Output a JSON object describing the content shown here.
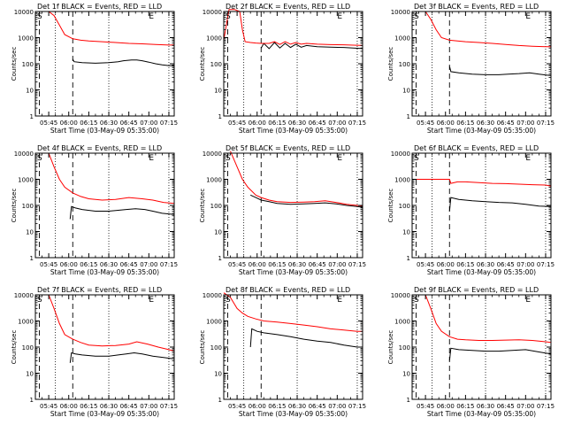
{
  "common": {
    "ylabel": "Counts/sec",
    "xlabel": "Start Time (03-May-09 05:35:00)",
    "xlabel_alt": "Start Time (03–May–09 05:35:00)",
    "xticks": [
      "05:45",
      "06:00",
      "06:15",
      "06:30",
      "06:45",
      "07:00",
      "07:15"
    ],
    "yticks": [
      "1",
      "10",
      "100",
      "1000",
      "10000"
    ],
    "marker_S": "S",
    "marker_E": "E",
    "colors": {
      "events": "#000000",
      "lld": "#ff0000"
    },
    "scale": "log"
  },
  "chart_data": [
    {
      "type": "line",
      "title": "Det 1f BLACK = Events, RED = LLD",
      "ylim": [
        1,
        10000
      ],
      "xlim_minutes": [
        0,
        104
      ],
      "series": [
        {
          "name": "Events",
          "x": [
            28,
            29,
            35,
            45,
            55,
            62,
            66,
            72,
            76,
            80,
            85,
            90,
            95,
            100,
            104
          ],
          "y": [
            150,
            120,
            110,
            105,
            110,
            120,
            130,
            140,
            140,
            130,
            115,
            100,
            90,
            85,
            85
          ]
        },
        {
          "name": "LLD",
          "x": [
            10,
            14,
            18,
            22,
            28,
            34,
            40,
            50,
            60,
            70,
            80,
            90,
            100,
            104
          ],
          "y": [
            10000,
            7000,
            3000,
            1300,
            900,
            800,
            750,
            700,
            650,
            600,
            580,
            550,
            520,
            520
          ]
        }
      ]
    },
    {
      "type": "line",
      "title": "Det 2f BLACK = Events, RED = LLD",
      "ylim": [
        1,
        10000
      ],
      "xlim_minutes": [
        0,
        104
      ],
      "series": [
        {
          "name": "Events",
          "x": [
            28,
            30,
            34,
            38,
            42,
            46,
            50,
            54,
            58,
            62,
            70,
            80,
            90,
            104
          ],
          "y": [
            400,
            600,
            380,
            650,
            400,
            600,
            420,
            560,
            430,
            500,
            450,
            430,
            420,
            380
          ]
        },
        {
          "name": "LLD",
          "x": [
            0,
            4,
            8,
            12,
            14,
            16,
            20,
            24,
            28,
            34,
            38,
            42,
            46,
            50,
            54,
            58,
            62,
            70,
            80,
            90,
            104
          ],
          "y": [
            800,
            12000,
            12000,
            10000,
            2000,
            700,
            650,
            620,
            600,
            600,
            700,
            550,
            700,
            560,
            650,
            560,
            600,
            560,
            540,
            530,
            500
          ]
        }
      ]
    },
    {
      "type": "line",
      "title": "Det 3f BLACK = Events, RED = LLD",
      "ylim": [
        1,
        10000
      ],
      "xlim_minutes": [
        0,
        104
      ],
      "series": [
        {
          "name": "Events",
          "x": [
            28,
            29,
            35,
            45,
            55,
            65,
            72,
            80,
            88,
            95,
            104
          ],
          "y": [
            80,
            50,
            45,
            40,
            38,
            38,
            40,
            42,
            45,
            40,
            35
          ]
        },
        {
          "name": "LLD",
          "x": [
            10,
            14,
            18,
            22,
            28,
            34,
            40,
            50,
            60,
            70,
            80,
            90,
            100,
            104
          ],
          "y": [
            10000,
            5000,
            2000,
            1000,
            800,
            750,
            700,
            650,
            600,
            550,
            500,
            470,
            450,
            450
          ]
        }
      ]
    },
    {
      "type": "line",
      "title": "Det 4f BLACK = Events, RED = LLD",
      "ylim": [
        1,
        10000
      ],
      "xlim_minutes": [
        0,
        104
      ],
      "series": [
        {
          "name": "Events",
          "x": [
            26,
            27,
            30,
            35,
            45,
            55,
            62,
            68,
            75,
            82,
            88,
            95,
            104
          ],
          "y": [
            30,
            90,
            80,
            70,
            60,
            60,
            65,
            70,
            75,
            70,
            60,
            50,
            45
          ]
        },
        {
          "name": "LLD",
          "x": [
            10,
            14,
            18,
            22,
            28,
            34,
            40,
            50,
            60,
            70,
            80,
            88,
            96,
            104
          ],
          "y": [
            10000,
            3000,
            1000,
            500,
            300,
            220,
            180,
            160,
            170,
            200,
            180,
            160,
            130,
            120
          ]
        }
      ]
    },
    {
      "type": "line",
      "title": "Det 5f BLACK = Events, RED = LLD",
      "ylim": [
        1,
        10000
      ],
      "xlim_minutes": [
        0,
        104
      ],
      "series": [
        {
          "name": "Events",
          "x": [
            20,
            24,
            28,
            34,
            40,
            50,
            60,
            68,
            76,
            84,
            92,
            100,
            104
          ],
          "y": [
            250,
            200,
            160,
            140,
            120,
            110,
            115,
            120,
            125,
            115,
            100,
            90,
            85
          ]
        },
        {
          "name": "LLD",
          "x": [
            5,
            10,
            14,
            18,
            24,
            28,
            34,
            40,
            50,
            60,
            68,
            76,
            84,
            92,
            100,
            104
          ],
          "y": [
            12000,
            3000,
            1000,
            500,
            250,
            200,
            160,
            140,
            130,
            135,
            140,
            150,
            130,
            110,
            100,
            95
          ]
        }
      ]
    },
    {
      "type": "line",
      "title": "Det 6f BLACK = Events, RED = LLD",
      "ylim": [
        1,
        10000
      ],
      "xlim_minutes": [
        0,
        104
      ],
      "series": [
        {
          "name": "Events",
          "x": [
            28,
            29,
            35,
            45,
            55,
            65,
            75,
            85,
            95,
            104
          ],
          "y": [
            60,
            200,
            170,
            150,
            140,
            130,
            125,
            110,
            95,
            90
          ]
        },
        {
          "name": "LLD",
          "x": [
            0,
            10,
            20,
            28,
            29,
            34,
            40,
            50,
            60,
            70,
            80,
            90,
            100,
            104
          ],
          "y": [
            1000,
            1000,
            1000,
            1000,
            700,
            800,
            800,
            750,
            700,
            680,
            650,
            620,
            600,
            550
          ]
        }
      ]
    },
    {
      "type": "line",
      "title": "Det 7f BLACK = Events, RED = LLD",
      "ylim": [
        1,
        10000
      ],
      "xlim_minutes": [
        0,
        104
      ],
      "series": [
        {
          "name": "Events",
          "x": [
            26,
            27,
            30,
            35,
            45,
            55,
            62,
            68,
            74,
            80,
            88,
            96,
            104
          ],
          "y": [
            25,
            60,
            55,
            50,
            45,
            45,
            50,
            55,
            60,
            55,
            45,
            40,
            35
          ]
        },
        {
          "name": "LLD",
          "x": [
            10,
            14,
            18,
            22,
            28,
            34,
            40,
            50,
            60,
            70,
            76,
            84,
            92,
            100,
            104
          ],
          "y": [
            10000,
            3000,
            800,
            300,
            200,
            150,
            120,
            110,
            115,
            130,
            160,
            130,
            100,
            80,
            70
          ]
        }
      ]
    },
    {
      "type": "line",
      "title": "Det 8f BLACK = Events, RED = LLD",
      "ylim": [
        1,
        10000
      ],
      "xlim_minutes": [
        0,
        104
      ],
      "series": [
        {
          "name": "Events",
          "x": [
            20,
            21,
            25,
            30,
            40,
            50,
            60,
            70,
            80,
            90,
            100,
            104
          ],
          "y": [
            100,
            500,
            400,
            350,
            300,
            250,
            200,
            170,
            150,
            120,
            100,
            100
          ]
        },
        {
          "name": "LLD",
          "x": [
            0,
            5,
            10,
            14,
            18,
            24,
            30,
            40,
            50,
            60,
            70,
            80,
            90,
            100,
            104
          ],
          "y": [
            12000,
            8000,
            3000,
            2000,
            1500,
            1200,
            1000,
            900,
            800,
            700,
            600,
            500,
            450,
            400,
            400
          ]
        }
      ]
    },
    {
      "type": "line",
      "title": "Det 9f BLACK = Events, RED = LLD",
      "ylim": [
        1,
        10000
      ],
      "xlim_minutes": [
        0,
        104
      ],
      "series": [
        {
          "name": "Events",
          "x": [
            28,
            29,
            35,
            45,
            55,
            65,
            75,
            85,
            95,
            104
          ],
          "y": [
            30,
            90,
            80,
            75,
            70,
            70,
            75,
            80,
            65,
            55
          ]
        },
        {
          "name": "LLD",
          "x": [
            10,
            14,
            18,
            22,
            28,
            34,
            40,
            50,
            60,
            70,
            80,
            90,
            100,
            104
          ],
          "y": [
            10000,
            3000,
            800,
            400,
            250,
            200,
            190,
            180,
            180,
            185,
            190,
            180,
            160,
            150
          ]
        }
      ]
    }
  ]
}
